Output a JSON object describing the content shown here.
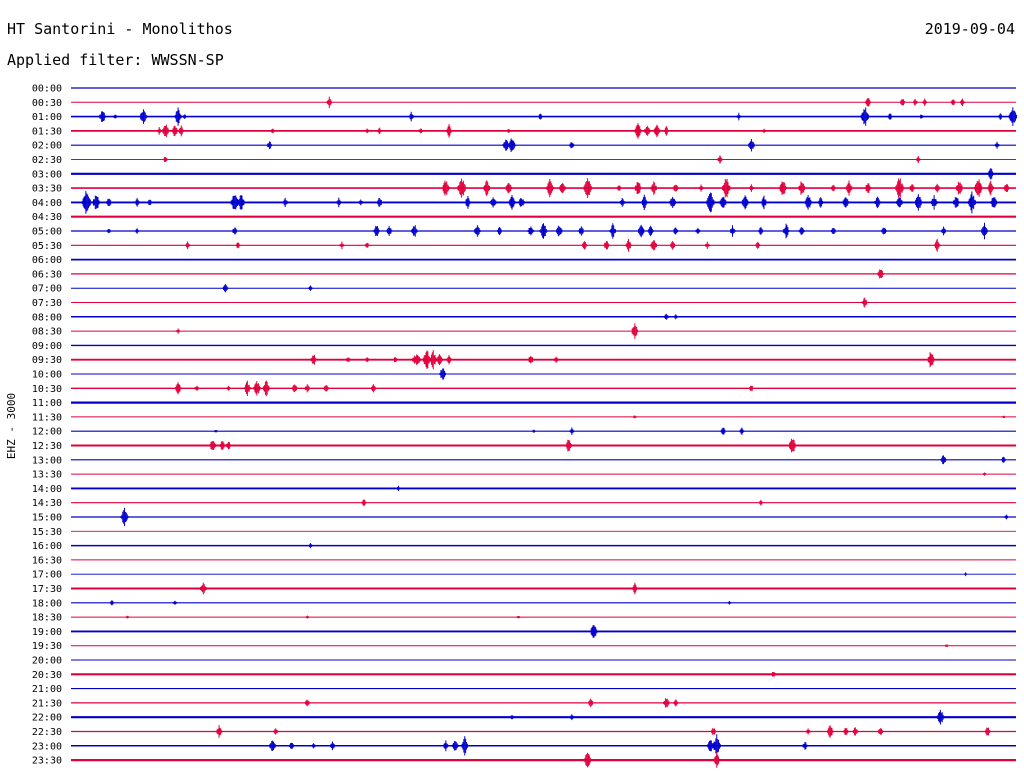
{
  "header": {
    "station": "HT Santorini - Monolithos",
    "date": "2019-09-04",
    "filter": "Applied filter: WWSSN-SP"
  },
  "colors": {
    "blue": "#0000cc",
    "red": "#e0003c",
    "background": "#ffffff"
  },
  "chart_data": {
    "type": "line",
    "title": "HT Santorini - Monolithos",
    "subtitle": "Applied filter: WWSSN-SP",
    "date": "2019-09-04",
    "ylabel": "EHZ - 3000",
    "xlabel": "",
    "xlim": [
      0,
      30
    ],
    "x_unit": "minutes within each row",
    "grid": false,
    "rows": [
      {
        "time": "00:00",
        "color": "blue",
        "noise": 0.6,
        "events": []
      },
      {
        "time": "00:30",
        "color": "red",
        "noise": 0.3,
        "events": [
          [
            8.2,
            6
          ],
          [
            25.3,
            6
          ],
          [
            26.4,
            5
          ],
          [
            26.8,
            4
          ],
          [
            27.1,
            4
          ],
          [
            28.0,
            4
          ],
          [
            28.3,
            4
          ]
        ]
      },
      {
        "time": "01:00",
        "color": "blue",
        "noise": 1.2,
        "events": [
          [
            1.0,
            8
          ],
          [
            1.4,
            3
          ],
          [
            2.3,
            10
          ],
          [
            3.4,
            10
          ],
          [
            3.6,
            3
          ],
          [
            10.8,
            5
          ],
          [
            14.9,
            4
          ],
          [
            21.2,
            4
          ],
          [
            25.2,
            12
          ],
          [
            26.0,
            4
          ],
          [
            27.0,
            3
          ],
          [
            29.5,
            4
          ],
          [
            29.9,
            12
          ]
        ]
      },
      {
        "time": "01:30",
        "color": "red",
        "noise": 1.4,
        "events": [
          [
            2.8,
            4
          ],
          [
            3.0,
            9
          ],
          [
            3.3,
            7
          ],
          [
            3.5,
            6
          ],
          [
            6.4,
            4
          ],
          [
            9.4,
            3
          ],
          [
            9.8,
            4
          ],
          [
            11.1,
            4
          ],
          [
            12.0,
            7
          ],
          [
            13.9,
            3
          ],
          [
            18.0,
            9
          ],
          [
            18.3,
            8
          ],
          [
            18.6,
            8
          ],
          [
            18.9,
            5
          ],
          [
            22.0,
            3
          ]
        ]
      },
      {
        "time": "02:00",
        "color": "blue",
        "noise": 0.5,
        "events": [
          [
            6.3,
            5
          ],
          [
            13.8,
            8
          ],
          [
            14.0,
            10
          ],
          [
            15.9,
            5
          ],
          [
            21.6,
            8
          ],
          [
            29.4,
            4
          ]
        ]
      },
      {
        "time": "02:30",
        "color": "red",
        "noise": 0.4,
        "events": [
          [
            3.0,
            4
          ],
          [
            20.6,
            5
          ],
          [
            26.9,
            4
          ]
        ]
      },
      {
        "time": "03:00",
        "color": "blue",
        "noise": 2.0,
        "events": [
          [
            29.2,
            7
          ]
        ]
      },
      {
        "time": "03:30",
        "color": "red",
        "noise": 1.2,
        "events": [
          [
            11.9,
            10
          ],
          [
            12.4,
            13
          ],
          [
            13.2,
            9
          ],
          [
            13.9,
            8
          ],
          [
            15.2,
            10
          ],
          [
            15.6,
            9
          ],
          [
            16.4,
            12
          ],
          [
            17.4,
            4
          ],
          [
            18.0,
            9
          ],
          [
            18.5,
            8
          ],
          [
            19.2,
            6
          ],
          [
            20.0,
            4
          ],
          [
            20.8,
            12
          ],
          [
            21.6,
            4
          ],
          [
            22.6,
            10
          ],
          [
            23.2,
            9
          ],
          [
            24.2,
            5
          ],
          [
            24.7,
            8
          ],
          [
            25.3,
            7
          ],
          [
            26.3,
            13
          ],
          [
            26.7,
            6
          ],
          [
            27.5,
            5
          ],
          [
            28.2,
            9
          ],
          [
            28.8,
            12
          ],
          [
            29.2,
            8
          ],
          [
            29.7,
            6
          ]
        ]
      },
      {
        "time": "04:00",
        "color": "blue",
        "noise": 1.5,
        "events": [
          [
            0.5,
            15
          ],
          [
            0.8,
            10
          ],
          [
            1.2,
            6
          ],
          [
            2.1,
            5
          ],
          [
            2.5,
            4
          ],
          [
            5.2,
            12
          ],
          [
            5.4,
            10
          ],
          [
            6.8,
            5
          ],
          [
            8.5,
            5
          ],
          [
            9.2,
            4
          ],
          [
            9.8,
            6
          ],
          [
            12.6,
            7
          ],
          [
            13.4,
            8
          ],
          [
            14.0,
            9
          ],
          [
            14.3,
            7
          ],
          [
            17.5,
            6
          ],
          [
            18.2,
            8
          ],
          [
            19.1,
            8
          ],
          [
            20.3,
            12
          ],
          [
            20.7,
            10
          ],
          [
            21.4,
            9
          ],
          [
            22.0,
            7
          ],
          [
            23.4,
            10
          ],
          [
            23.8,
            6
          ],
          [
            24.6,
            8
          ],
          [
            25.6,
            7
          ],
          [
            26.3,
            9
          ],
          [
            26.9,
            10
          ],
          [
            27.4,
            8
          ],
          [
            28.1,
            8
          ],
          [
            28.6,
            12
          ],
          [
            29.3,
            9
          ]
        ]
      },
      {
        "time": "04:30",
        "color": "red",
        "noise": 2.0,
        "events": []
      },
      {
        "time": "05:00",
        "color": "blue",
        "noise": 0.8,
        "events": [
          [
            1.2,
            3
          ],
          [
            2.1,
            3
          ],
          [
            5.2,
            5
          ],
          [
            9.7,
            7
          ],
          [
            10.1,
            6
          ],
          [
            10.9,
            8
          ],
          [
            12.9,
            8
          ],
          [
            13.6,
            5
          ],
          [
            14.6,
            7
          ],
          [
            15.0,
            10
          ],
          [
            15.5,
            8
          ],
          [
            16.2,
            6
          ],
          [
            17.2,
            8
          ],
          [
            18.1,
            9
          ],
          [
            18.4,
            6
          ],
          [
            19.2,
            5
          ],
          [
            19.9,
            4
          ],
          [
            21.0,
            6
          ],
          [
            21.9,
            5
          ],
          [
            22.7,
            8
          ],
          [
            23.2,
            6
          ],
          [
            24.2,
            5
          ],
          [
            25.8,
            6
          ],
          [
            27.7,
            5
          ],
          [
            29.0,
            9
          ]
        ]
      },
      {
        "time": "05:30",
        "color": "red",
        "noise": 0.6,
        "events": [
          [
            3.7,
            4
          ],
          [
            5.3,
            4
          ],
          [
            8.6,
            4
          ],
          [
            9.4,
            4
          ],
          [
            16.3,
            5
          ],
          [
            17.0,
            6
          ],
          [
            17.7,
            7
          ],
          [
            18.5,
            8
          ],
          [
            19.1,
            5
          ],
          [
            20.2,
            4
          ],
          [
            21.8,
            5
          ],
          [
            27.5,
            7
          ]
        ]
      },
      {
        "time": "06:00",
        "color": "blue",
        "noise": 1.4,
        "events": []
      },
      {
        "time": "06:30",
        "color": "red",
        "noise": 0.6,
        "events": [
          [
            25.7,
            7
          ]
        ]
      },
      {
        "time": "07:00",
        "color": "blue",
        "noise": 0.3,
        "events": [
          [
            4.9,
            6
          ],
          [
            7.6,
            3
          ]
        ]
      },
      {
        "time": "07:30",
        "color": "red",
        "noise": 0.3,
        "events": [
          [
            25.2,
            6
          ]
        ]
      },
      {
        "time": "08:00",
        "color": "blue",
        "noise": 1.0,
        "events": [
          [
            18.9,
            5
          ],
          [
            19.2,
            3
          ]
        ]
      },
      {
        "time": "08:30",
        "color": "red",
        "noise": 0.3,
        "events": [
          [
            3.4,
            3
          ],
          [
            17.9,
            9
          ]
        ]
      },
      {
        "time": "09:00",
        "color": "blue",
        "noise": 0.8,
        "events": []
      },
      {
        "time": "09:30",
        "color": "red",
        "noise": 1.4,
        "events": [
          [
            7.7,
            7
          ],
          [
            8.8,
            4
          ],
          [
            9.4,
            3
          ],
          [
            10.3,
            4
          ],
          [
            10.9,
            5
          ],
          [
            11.0,
            8
          ],
          [
            11.3,
            12
          ],
          [
            11.5,
            10
          ],
          [
            11.7,
            8
          ],
          [
            12.0,
            5
          ],
          [
            14.6,
            6
          ],
          [
            15.4,
            4
          ],
          [
            27.3,
            10
          ]
        ]
      },
      {
        "time": "10:00",
        "color": "blue",
        "noise": 0.4,
        "events": [
          [
            11.8,
            8
          ]
        ]
      },
      {
        "time": "10:30",
        "color": "red",
        "noise": 0.8,
        "events": [
          [
            3.4,
            7
          ],
          [
            4.0,
            4
          ],
          [
            5.0,
            3
          ],
          [
            5.6,
            8
          ],
          [
            5.9,
            10
          ],
          [
            6.2,
            9
          ],
          [
            7.1,
            6
          ],
          [
            7.5,
            5
          ],
          [
            8.1,
            6
          ],
          [
            9.6,
            5
          ],
          [
            21.6,
            4
          ]
        ]
      },
      {
        "time": "11:00",
        "color": "blue",
        "noise": 2.0,
        "events": []
      },
      {
        "time": "11:30",
        "color": "red",
        "noise": 0.3,
        "events": [
          [
            17.9,
            2
          ],
          [
            29.6,
            2
          ]
        ]
      },
      {
        "time": "12:00",
        "color": "blue",
        "noise": 0.5,
        "events": [
          [
            4.6,
            2
          ],
          [
            14.7,
            2
          ],
          [
            15.9,
            4
          ],
          [
            20.7,
            5
          ],
          [
            21.3,
            4
          ]
        ]
      },
      {
        "time": "12:30",
        "color": "red",
        "noise": 1.8,
        "events": [
          [
            4.5,
            8
          ],
          [
            4.8,
            6
          ],
          [
            5.0,
            5
          ],
          [
            15.8,
            8
          ],
          [
            22.9,
            10
          ]
        ]
      },
      {
        "time": "13:00",
        "color": "blue",
        "noise": 0.6,
        "events": [
          [
            27.7,
            6
          ],
          [
            29.6,
            4
          ]
        ]
      },
      {
        "time": "13:30",
        "color": "red",
        "noise": 0.2,
        "events": [
          [
            29.0,
            2
          ]
        ]
      },
      {
        "time": "14:00",
        "color": "blue",
        "noise": 1.6,
        "events": [
          [
            10.4,
            3
          ]
        ]
      },
      {
        "time": "14:30",
        "color": "red",
        "noise": 0.6,
        "events": [
          [
            9.3,
            5
          ],
          [
            21.9,
            3
          ]
        ]
      },
      {
        "time": "15:00",
        "color": "blue",
        "noise": 0.6,
        "events": [
          [
            1.7,
            10
          ],
          [
            29.7,
            3
          ]
        ]
      },
      {
        "time": "15:30",
        "color": "red",
        "noise": 0.2,
        "events": []
      },
      {
        "time": "16:00",
        "color": "blue",
        "noise": 1.0,
        "events": [
          [
            7.6,
            3
          ]
        ]
      },
      {
        "time": "16:30",
        "color": "red",
        "noise": 0.2,
        "events": []
      },
      {
        "time": "17:00",
        "color": "blue",
        "noise": 0.2,
        "events": [
          [
            28.4,
            2
          ]
        ]
      },
      {
        "time": "17:30",
        "color": "red",
        "noise": 1.6,
        "events": [
          [
            4.2,
            8
          ],
          [
            17.9,
            6
          ]
        ]
      },
      {
        "time": "18:00",
        "color": "blue",
        "noise": 0.6,
        "events": [
          [
            1.3,
            3
          ],
          [
            3.3,
            3
          ],
          [
            20.9,
            2
          ]
        ]
      },
      {
        "time": "18:30",
        "color": "red",
        "noise": 0.3,
        "events": [
          [
            1.8,
            2
          ],
          [
            7.5,
            2
          ],
          [
            14.2,
            2
          ]
        ]
      },
      {
        "time": "19:00",
        "color": "blue",
        "noise": 1.6,
        "events": [
          [
            16.6,
            10
          ]
        ]
      },
      {
        "time": "19:30",
        "color": "red",
        "noise": 0.3,
        "events": [
          [
            27.8,
            2
          ]
        ]
      },
      {
        "time": "20:00",
        "color": "blue",
        "noise": 0.2,
        "events": []
      },
      {
        "time": "20:30",
        "color": "red",
        "noise": 1.8,
        "events": [
          [
            22.3,
            4
          ]
        ]
      },
      {
        "time": "21:00",
        "color": "blue",
        "noise": 0.4,
        "events": []
      },
      {
        "time": "21:30",
        "color": "red",
        "noise": 0.6,
        "events": [
          [
            7.5,
            5
          ],
          [
            16.5,
            5
          ],
          [
            18.9,
            7
          ],
          [
            19.2,
            5
          ]
        ]
      },
      {
        "time": "22:00",
        "color": "blue",
        "noise": 1.8,
        "events": [
          [
            14.0,
            3
          ],
          [
            15.9,
            3
          ],
          [
            27.6,
            10
          ]
        ]
      },
      {
        "time": "22:30",
        "color": "red",
        "noise": 0.6,
        "events": [
          [
            4.7,
            7
          ],
          [
            6.5,
            4
          ],
          [
            20.4,
            5
          ],
          [
            23.4,
            4
          ],
          [
            24.1,
            8
          ],
          [
            24.6,
            5
          ],
          [
            24.9,
            6
          ],
          [
            25.7,
            5
          ],
          [
            29.1,
            6
          ]
        ]
      },
      {
        "time": "23:00",
        "color": "blue",
        "noise": 1.0,
        "events": [
          [
            6.4,
            8
          ],
          [
            7.0,
            5
          ],
          [
            7.7,
            4
          ],
          [
            8.3,
            5
          ],
          [
            11.9,
            6
          ],
          [
            12.2,
            7
          ],
          [
            12.5,
            10
          ],
          [
            20.3,
            9
          ],
          [
            20.5,
            12
          ],
          [
            23.3,
            5
          ]
        ]
      },
      {
        "time": "23:30",
        "color": "red",
        "noise": 2.0,
        "events": [
          [
            16.4,
            10
          ],
          [
            20.5,
            8
          ]
        ]
      }
    ]
  }
}
